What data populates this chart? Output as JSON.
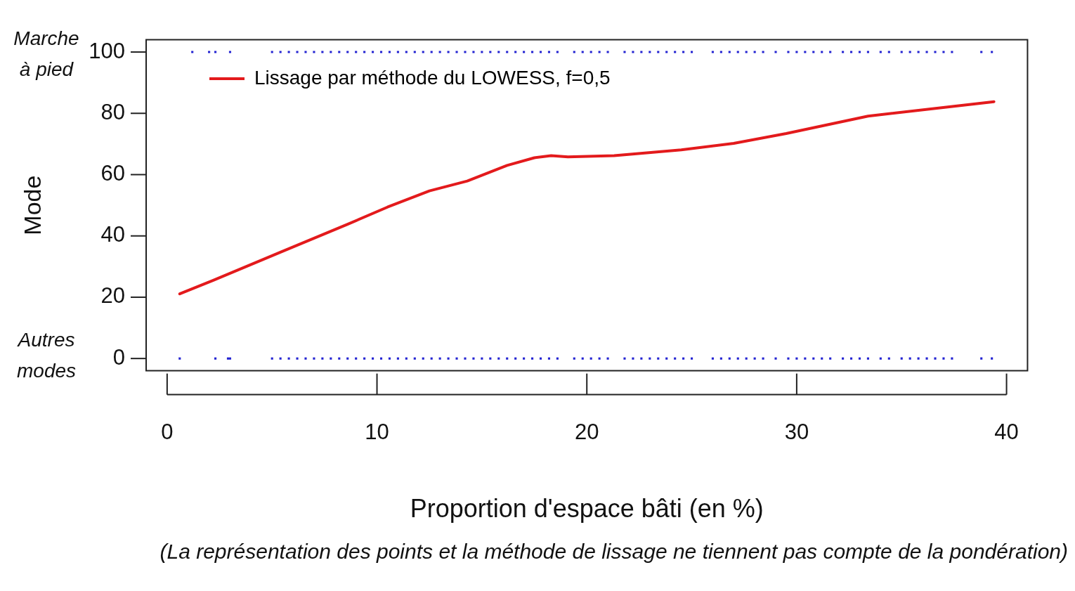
{
  "chart_data": {
    "type": "scatter",
    "xlabel": "Proportion d'espace bâti (en %)",
    "ylabel": "Mode",
    "xlim": [
      -1,
      41
    ],
    "xticks": [
      0,
      10,
      20,
      30,
      40
    ],
    "ylim": [
      -4,
      104
    ],
    "yticks": [
      0,
      20,
      40,
      60,
      80,
      100
    ],
    "grid": false,
    "legend": "top left",
    "marker": "square",
    "annotations": [
      "Marche à pied",
      "Autres modes",
      "(La représentation des points et la méthode de lissage ne tiennent pas compte de la pondération)"
    ],
    "series": [
      {
        "color": "#2323d2",
        "x": [
          1.2,
          2.0,
          2.3,
          3.0,
          5.0,
          5.4,
          5.8,
          6.2,
          6.6,
          7.0,
          7.4,
          7.8,
          8.2,
          8.6,
          9.0,
          9.4,
          9.8,
          10.2,
          10.6,
          11.0,
          11.4,
          11.8,
          12.2,
          12.6,
          13.0,
          13.4,
          13.8,
          14.2,
          14.6,
          15.0,
          15.4,
          15.8,
          16.2,
          16.6,
          17.0,
          17.4,
          17.8,
          18.2,
          18.6,
          19.4,
          19.8,
          20.2,
          20.6,
          21.0,
          21.8,
          22.2,
          22.6,
          23.0,
          23.4,
          23.8,
          24.2,
          24.6,
          25.0,
          26.0,
          26.4,
          26.8,
          27.2,
          27.6,
          28.0,
          28.4,
          29.0,
          29.6,
          30.0,
          30.4,
          30.8,
          31.2,
          31.6,
          32.2,
          32.6,
          33.0,
          33.4,
          34.0,
          34.4,
          35.0,
          35.4,
          35.8,
          36.2,
          36.6,
          37.0,
          37.4,
          38.8,
          39.3
        ],
        "values": [
          100,
          100,
          100,
          100,
          100,
          100,
          100,
          100,
          100,
          100,
          100,
          100,
          100,
          100,
          100,
          100,
          100,
          100,
          100,
          100,
          100,
          100,
          100,
          100,
          100,
          100,
          100,
          100,
          100,
          100,
          100,
          100,
          100,
          100,
          100,
          100,
          100,
          100,
          100,
          100,
          100,
          100,
          100,
          100,
          100,
          100,
          100,
          100,
          100,
          100,
          100,
          100,
          100,
          100,
          100,
          100,
          100,
          100,
          100,
          100,
          100,
          100,
          100,
          100,
          100,
          100,
          100,
          100,
          100,
          100,
          100,
          100,
          100,
          100,
          100,
          100,
          100,
          100,
          100,
          100,
          100,
          100
        ]
      },
      {
        "color": "#2323d2",
        "x": [
          0.6,
          2.3,
          2.9,
          3.0,
          5.0,
          5.4,
          5.8,
          6.2,
          6.6,
          7.0,
          7.4,
          7.8,
          8.2,
          8.6,
          9.0,
          9.4,
          9.8,
          10.2,
          10.6,
          11.0,
          11.4,
          11.8,
          12.2,
          12.6,
          13.0,
          13.4,
          13.8,
          14.2,
          14.6,
          15.0,
          15.4,
          15.8,
          16.2,
          16.6,
          17.0,
          17.4,
          17.8,
          18.2,
          18.6,
          19.4,
          19.8,
          20.2,
          20.6,
          21.0,
          21.8,
          22.2,
          22.6,
          23.0,
          23.4,
          23.8,
          24.2,
          24.6,
          25.0,
          26.0,
          26.4,
          26.8,
          27.2,
          27.6,
          28.0,
          28.4,
          29.0,
          29.6,
          30.0,
          30.4,
          30.8,
          31.2,
          31.6,
          32.2,
          32.6,
          33.0,
          33.4,
          34.0,
          34.4,
          35.0,
          35.4,
          35.8,
          36.2,
          36.6,
          37.0,
          37.4,
          38.8,
          39.3
        ],
        "values": [
          0,
          0,
          0,
          0,
          0,
          0,
          0,
          0,
          0,
          0,
          0,
          0,
          0,
          0,
          0,
          0,
          0,
          0,
          0,
          0,
          0,
          0,
          0,
          0,
          0,
          0,
          0,
          0,
          0,
          0,
          0,
          0,
          0,
          0,
          0,
          0,
          0,
          0,
          0,
          0,
          0,
          0,
          0,
          0,
          0,
          0,
          0,
          0,
          0,
          0,
          0,
          0,
          0,
          0,
          0,
          0,
          0,
          0,
          0,
          0,
          0,
          0,
          0,
          0,
          0,
          0,
          0,
          0,
          0,
          0,
          0,
          0,
          0,
          0,
          0,
          0,
          0,
          0,
          0,
          0,
          0,
          0
        ]
      },
      {
        "type": "line",
        "name": "Lissage par méthode du LOWESS, f=0,5",
        "color": "#e31a1c",
        "marker": "none",
        "line_style": "solid",
        "x": [
          0.6,
          2.2,
          5.4,
          8.6,
          10.5,
          12.5,
          14.3,
          16.2,
          17.5,
          18.3,
          19.1,
          21.3,
          24.5,
          27.0,
          29.5,
          33.4,
          39.4
        ],
        "values": [
          21.1,
          25.5,
          34.7,
          43.8,
          49.4,
          54.7,
          57.9,
          63.0,
          65.5,
          66.2,
          65.8,
          66.2,
          68.1,
          70.2,
          73.4,
          79.1,
          83.8
        ]
      }
    ]
  }
}
